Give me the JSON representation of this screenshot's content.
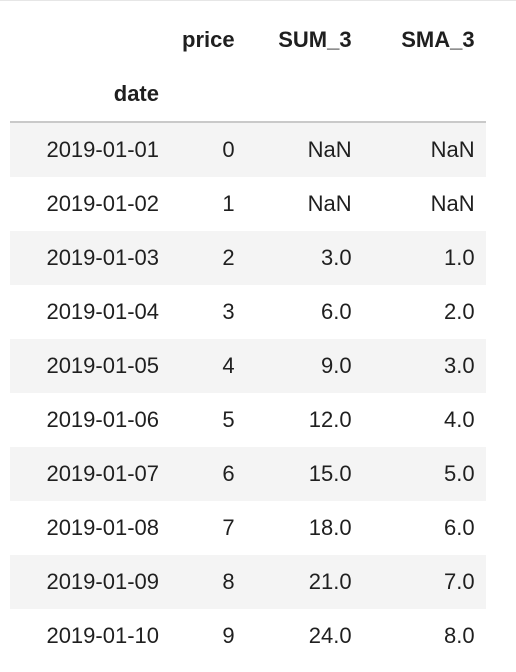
{
  "table": {
    "columns": [
      "price",
      "SUM_3",
      "SMA_3"
    ],
    "index_name": "date",
    "rows": [
      {
        "date": "2019-01-01",
        "price": "0",
        "sum3": "NaN",
        "sma3": "NaN"
      },
      {
        "date": "2019-01-02",
        "price": "1",
        "sum3": "NaN",
        "sma3": "NaN"
      },
      {
        "date": "2019-01-03",
        "price": "2",
        "sum3": "3.0",
        "sma3": "1.0"
      },
      {
        "date": "2019-01-04",
        "price": "3",
        "sum3": "6.0",
        "sma3": "2.0"
      },
      {
        "date": "2019-01-05",
        "price": "4",
        "sum3": "9.0",
        "sma3": "3.0"
      },
      {
        "date": "2019-01-06",
        "price": "5",
        "sum3": "12.0",
        "sma3": "4.0"
      },
      {
        "date": "2019-01-07",
        "price": "6",
        "sum3": "15.0",
        "sma3": "5.0"
      },
      {
        "date": "2019-01-08",
        "price": "7",
        "sum3": "18.0",
        "sma3": "6.0"
      },
      {
        "date": "2019-01-09",
        "price": "8",
        "sum3": "21.0",
        "sma3": "7.0"
      },
      {
        "date": "2019-01-10",
        "price": "9",
        "sum3": "24.0",
        "sma3": "8.0"
      }
    ]
  }
}
